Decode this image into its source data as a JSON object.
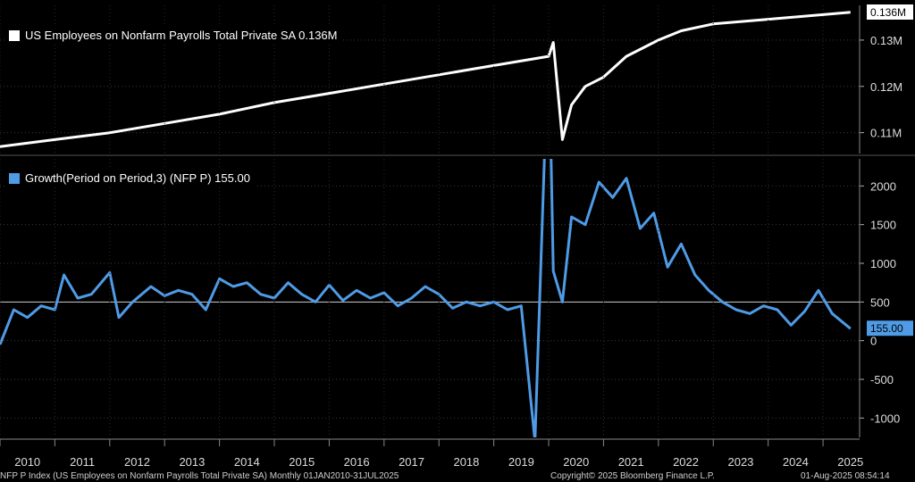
{
  "legend": {
    "top": "US Employees on Nonfarm Payrolls Total Private SA 0.136M",
    "bottom": "Growth(Period on Period,3) (NFP P) 155.00"
  },
  "footer": {
    "left": "NFP P Index (US Employees on Nonfarm Payrolls Total Private SA)  Monthly 01JAN2010-31JUL2025",
    "center": "Copyright© 2025 Bloomberg Finance L.P.",
    "right": "01-Aug-2025 08:54:14"
  },
  "colors": {
    "background": "#000000",
    "top_series": "#ffffff",
    "bottom_series": "#4f9be6",
    "grid": "#3a3a3a",
    "label_bg": "#ffffff"
  },
  "chart_data": [
    {
      "type": "line",
      "series": [
        {
          "name": "US Employees on Nonfarm Payrolls Total Private SA",
          "x": [
            "2010-01",
            "2011-01",
            "2012-01",
            "2013-01",
            "2014-01",
            "2015-01",
            "2016-01",
            "2017-01",
            "2018-01",
            "2019-01",
            "2020-01",
            "2020-02",
            "2020-04",
            "2020-06",
            "2020-09",
            "2021-01",
            "2021-06",
            "2022-01",
            "2022-06",
            "2023-01",
            "2024-01",
            "2025-07"
          ],
          "values": [
            0.107,
            0.1085,
            0.11,
            0.112,
            0.114,
            0.1165,
            0.1185,
            0.1205,
            0.1225,
            0.1245,
            0.1265,
            0.1295,
            0.1085,
            0.116,
            0.12,
            0.122,
            0.1265,
            0.13,
            0.132,
            0.1335,
            0.1345,
            0.136
          ]
        }
      ],
      "ylim": [
        0.1055,
        0.1375
      ],
      "yticks": [
        "0.11M",
        "0.12M",
        "0.13M"
      ],
      "last_value_label": "0.136M",
      "grid": true
    },
    {
      "type": "line",
      "series": [
        {
          "name": "Growth(Period on Period,3) (NFP P)",
          "x": [
            "2010-01",
            "2010-04",
            "2010-07",
            "2010-10",
            "2011-01",
            "2011-03",
            "2011-06",
            "2011-09",
            "2012-01",
            "2012-03",
            "2012-06",
            "2012-10",
            "2013-01",
            "2013-04",
            "2013-07",
            "2013-10",
            "2014-01",
            "2014-04",
            "2014-07",
            "2014-10",
            "2015-01",
            "2015-04",
            "2015-07",
            "2015-10",
            "2016-01",
            "2016-04",
            "2016-07",
            "2016-10",
            "2017-01",
            "2017-04",
            "2017-07",
            "2017-10",
            "2018-01",
            "2018-04",
            "2018-07",
            "2018-10",
            "2019-01",
            "2019-04",
            "2019-07",
            "2019-10",
            "2020-01",
            "2020-02",
            "2020-04",
            "2020-06",
            "2020-09",
            "2020-12",
            "2021-03",
            "2021-06",
            "2021-09",
            "2021-12",
            "2022-03",
            "2022-06",
            "2022-09",
            "2022-12",
            "2023-03",
            "2023-06",
            "2023-09",
            "2023-12",
            "2024-03",
            "2024-06",
            "2024-09",
            "2024-12",
            "2025-03",
            "2025-07"
          ],
          "values": [
            -50,
            400,
            300,
            450,
            400,
            850,
            550,
            600,
            880,
            300,
            500,
            700,
            580,
            650,
            600,
            400,
            800,
            700,
            750,
            600,
            550,
            750,
            600,
            500,
            720,
            520,
            650,
            550,
            620,
            450,
            550,
            700,
            600,
            420,
            500,
            450,
            500,
            400,
            450,
            -1300,
            4000,
            900,
            500,
            1600,
            1500,
            2050,
            1850,
            2100,
            1450,
            1650,
            950,
            1250,
            850,
            650,
            500,
            400,
            350,
            450,
            400,
            200,
            380,
            650,
            350,
            155
          ]
        }
      ],
      "ylim": [
        -1250,
        2350
      ],
      "yticks": [
        "-1000",
        "-500",
        "0",
        "500",
        "1000",
        "1500",
        "2000"
      ],
      "reference_line": 500,
      "last_value_label": "155.00",
      "grid": true
    }
  ],
  "xaxis": {
    "tick_labels": [
      "2010",
      "2011",
      "2012",
      "2013",
      "2014",
      "2015",
      "2016",
      "2017",
      "2018",
      "2019",
      "2020",
      "2021",
      "2022",
      "2023",
      "2024",
      "2025"
    ]
  }
}
